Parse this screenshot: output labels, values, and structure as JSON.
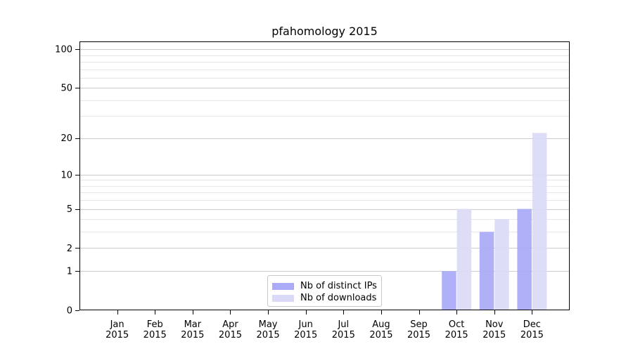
{
  "title": "pfahomology 2015",
  "colors": {
    "background": "#ffffff",
    "bar_distinct_ips": "#aaaaf8",
    "bar_downloads": "#dadaf8",
    "grid_major": "#cbcbcb",
    "grid_minor": "#e7e7e7",
    "axis": "#000000",
    "text": "#000000",
    "legend_border": "#c8c8c8"
  },
  "legend": {
    "items": [
      {
        "label": "Nb of distinct IPs",
        "color": "#aaaaf8"
      },
      {
        "label": "Nb of downloads",
        "color": "#dadaf8"
      }
    ]
  },
  "chart_data": {
    "type": "bar",
    "title": "pfahomology 2015",
    "categories": [
      "Jan",
      "Feb",
      "Mar",
      "Apr",
      "May",
      "Jun",
      "Jul",
      "Aug",
      "Sep",
      "Oct",
      "Nov",
      "Dec"
    ],
    "category_year": "2015",
    "series": [
      {
        "name": "Nb of distinct IPs",
        "color": "#aaaaf8",
        "values": [
          0,
          0,
          0,
          0,
          0,
          0,
          0,
          0,
          0,
          1,
          3,
          5
        ]
      },
      {
        "name": "Nb of downloads",
        "color": "#dadaf8",
        "values": [
          0,
          0,
          0,
          0,
          0,
          0,
          0,
          0,
          0,
          5,
          4,
          22
        ]
      }
    ],
    "y_scale": "log10(1+x)",
    "y_ticks": [
      0,
      1,
      2,
      5,
      10,
      20,
      50,
      100
    ],
    "y_minor_ticks": [
      3,
      4,
      6,
      7,
      8,
      9,
      30,
      40,
      60,
      70,
      80,
      90
    ],
    "ylim": [
      0,
      115
    ],
    "xlabel": "",
    "ylabel": "",
    "grid": "both",
    "legend_position": "lower center"
  }
}
